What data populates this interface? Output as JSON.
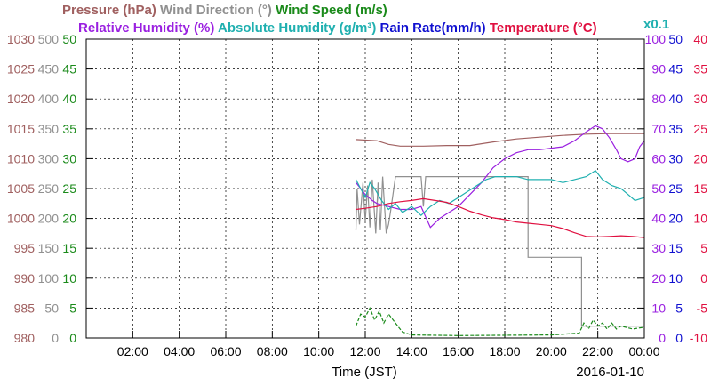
{
  "chart_data": {
    "type": "line",
    "date_label": "2016-01-10",
    "xlabel": "Time (JST)",
    "x_ticks": [
      "02:00",
      "04:00",
      "06:00",
      "08:00",
      "10:00",
      "12:00",
      "14:00",
      "16:00",
      "18:00",
      "20:00",
      "22:00",
      "00:00"
    ],
    "x_range_hours": [
      0,
      24
    ],
    "colors": {
      "pressure": "#a06060",
      "wind_direction": "#909090",
      "wind_speed": "#1a8a1a",
      "humidity": "#9a20e0",
      "abs_humidity": "#20b0b0",
      "rain": "#1010d0",
      "temperature": "#e01040",
      "grid": "#000000"
    },
    "legend": {
      "row1": [
        {
          "key": "pressure",
          "label": "Pressure (hPa)"
        },
        {
          "key": "wind_direction",
          "label": "Wind Direction (°)"
        },
        {
          "key": "wind_speed",
          "label": "Wind Speed (m/s)"
        }
      ],
      "row2": [
        {
          "key": "humidity",
          "label": "Relative Humidity (%)"
        },
        {
          "key": "abs_humidity",
          "label": "Absolute Humidity (g/m³)"
        },
        {
          "key": "rain",
          "label": "Rain Rate(mm/h)"
        },
        {
          "key": "temperature",
          "label": "Temperature (°C)"
        }
      ],
      "x01": "x0.1"
    },
    "left_axes": [
      {
        "key": "pressure",
        "ticks": [
          "980",
          "985",
          "990",
          "995",
          "1000",
          "1005",
          "1010",
          "1015",
          "1020",
          "1025",
          "1030"
        ],
        "ylim": [
          980,
          1030
        ]
      },
      {
        "key": "wind_direction",
        "ticks": [
          "0",
          "50",
          "100",
          "150",
          "200",
          "250",
          "300",
          "350",
          "400",
          "450",
          "500"
        ],
        "ylim": [
          0,
          500
        ]
      },
      {
        "key": "wind_speed",
        "ticks": [
          "0",
          "5",
          "10",
          "15",
          "20",
          "25",
          "30",
          "35",
          "40",
          "45",
          "50"
        ],
        "ylim": [
          0,
          50
        ]
      }
    ],
    "right_axes": [
      {
        "key": "humidity",
        "ticks": [
          "0",
          "10",
          "20",
          "30",
          "40",
          "50",
          "60",
          "70",
          "80",
          "90",
          "100"
        ],
        "ylim": [
          0,
          100
        ]
      },
      {
        "key": "rain",
        "ticks": [
          "0",
          "5",
          "10",
          "15",
          "20",
          "25",
          "30",
          "35",
          "40",
          "45",
          "50"
        ],
        "ylim": [
          0,
          50
        ]
      },
      {
        "key": "temperature",
        "ticks": [
          "-10",
          "-5",
          "0",
          "5",
          "10",
          "15",
          "20",
          "25",
          "30",
          "35",
          "40"
        ],
        "ylim": [
          -10,
          40
        ]
      }
    ],
    "series": [
      {
        "key": "pressure",
        "name": "Pressure (hPa)",
        "axis": "pressure",
        "points": [
          [
            11.6,
            1013.2
          ],
          [
            12.5,
            1013.0
          ],
          [
            13.0,
            1012.4
          ],
          [
            13.5,
            1012.1
          ],
          [
            14.5,
            1012.1
          ],
          [
            15.5,
            1012.2
          ],
          [
            16.5,
            1012.2
          ],
          [
            17.5,
            1012.8
          ],
          [
            18.5,
            1013.3
          ],
          [
            19.5,
            1013.6
          ],
          [
            20.5,
            1013.9
          ],
          [
            21.5,
            1014.1
          ],
          [
            22.5,
            1014.2
          ],
          [
            23.5,
            1014.2
          ],
          [
            24.0,
            1014.2
          ]
        ]
      },
      {
        "key": "wind_direction",
        "name": "Wind Direction (°)",
        "axis": "wind_direction",
        "points": [
          [
            11.6,
            180
          ],
          [
            11.65,
            250
          ],
          [
            11.75,
            190
          ],
          [
            11.9,
            260
          ],
          [
            12.0,
            195
          ],
          [
            12.1,
            255
          ],
          [
            12.2,
            185
          ],
          [
            12.3,
            265
          ],
          [
            12.45,
            175
          ],
          [
            12.55,
            260
          ],
          [
            12.65,
            180
          ],
          [
            12.75,
            270
          ],
          [
            12.9,
            175
          ],
          [
            13.0,
            190
          ],
          [
            13.1,
            215
          ],
          [
            13.3,
            270
          ],
          [
            14.4,
            270
          ],
          [
            14.5,
            220
          ],
          [
            14.6,
            270
          ],
          [
            19.0,
            270
          ],
          [
            19.0,
            135
          ],
          [
            21.3,
            135
          ],
          [
            21.3,
            20
          ],
          [
            24.0,
            20
          ]
        ]
      },
      {
        "key": "wind_speed",
        "name": "Wind Speed (m/s)",
        "axis": "wind_speed",
        "points": [
          [
            11.6,
            2
          ],
          [
            11.8,
            4
          ],
          [
            12.0,
            3.5
          ],
          [
            12.2,
            5
          ],
          [
            12.4,
            3
          ],
          [
            12.6,
            4.5
          ],
          [
            12.8,
            2.5
          ],
          [
            13.0,
            4
          ],
          [
            13.2,
            3
          ],
          [
            13.4,
            2
          ],
          [
            13.6,
            1
          ],
          [
            14.0,
            0.5
          ],
          [
            16.0,
            0.4
          ],
          [
            20.0,
            0.5
          ],
          [
            21.2,
            0.8
          ],
          [
            21.4,
            2.5
          ],
          [
            21.6,
            1.5
          ],
          [
            21.8,
            3
          ],
          [
            22.0,
            2
          ],
          [
            22.2,
            2.5
          ],
          [
            22.4,
            1.5
          ],
          [
            22.6,
            2.5
          ],
          [
            22.8,
            1.5
          ],
          [
            23.0,
            2
          ],
          [
            23.5,
            1.5
          ],
          [
            24.0,
            1.8
          ]
        ]
      },
      {
        "key": "humidity",
        "name": "Relative Humidity (%)",
        "axis": "humidity",
        "points": [
          [
            11.6,
            52
          ],
          [
            11.8,
            50
          ],
          [
            12.0,
            48
          ],
          [
            12.3,
            46
          ],
          [
            12.5,
            45
          ],
          [
            13.0,
            44
          ],
          [
            13.5,
            43
          ],
          [
            14.0,
            43
          ],
          [
            14.4,
            44
          ],
          [
            14.8,
            37
          ],
          [
            15.2,
            40
          ],
          [
            15.6,
            42
          ],
          [
            16.0,
            44
          ],
          [
            16.5,
            48
          ],
          [
            17.0,
            52
          ],
          [
            17.5,
            57
          ],
          [
            18.0,
            60
          ],
          [
            18.5,
            62
          ],
          [
            19.0,
            63
          ],
          [
            19.5,
            63
          ],
          [
            20.0,
            63.5
          ],
          [
            20.5,
            64
          ],
          [
            21.0,
            66
          ],
          [
            21.5,
            69
          ],
          [
            21.9,
            71
          ],
          [
            22.2,
            70
          ],
          [
            22.5,
            67
          ],
          [
            22.8,
            63
          ],
          [
            23.0,
            60
          ],
          [
            23.3,
            59
          ],
          [
            23.6,
            60
          ],
          [
            23.8,
            64
          ],
          [
            24.0,
            66
          ]
        ]
      },
      {
        "key": "abs_humidity",
        "name": "Absolute Humidity (g/m³)",
        "axis": "humidity",
        "points": [
          [
            11.6,
            53
          ],
          [
            11.8,
            50
          ],
          [
            12.0,
            47
          ],
          [
            12.2,
            52
          ],
          [
            12.4,
            50
          ],
          [
            12.7,
            46
          ],
          [
            13.0,
            43
          ],
          [
            13.3,
            45
          ],
          [
            13.6,
            42
          ],
          [
            14.0,
            44
          ],
          [
            14.4,
            41
          ],
          [
            14.8,
            44
          ],
          [
            15.2,
            46
          ],
          [
            15.6,
            45
          ],
          [
            16.0,
            47
          ],
          [
            16.4,
            49
          ],
          [
            16.8,
            51
          ],
          [
            17.2,
            53
          ],
          [
            17.6,
            54
          ],
          [
            18.0,
            54
          ],
          [
            18.5,
            54
          ],
          [
            19.0,
            53
          ],
          [
            19.5,
            53
          ],
          [
            20.0,
            53
          ],
          [
            20.5,
            52
          ],
          [
            21.0,
            53
          ],
          [
            21.5,
            54
          ],
          [
            21.9,
            56
          ],
          [
            22.2,
            53
          ],
          [
            22.6,
            51
          ],
          [
            23.0,
            50
          ],
          [
            23.3,
            48
          ],
          [
            23.6,
            46
          ],
          [
            24.0,
            47
          ]
        ]
      },
      {
        "key": "temperature",
        "name": "Temperature (°C)",
        "axis": "temperature",
        "points": [
          [
            11.6,
            11.5
          ],
          [
            12.0,
            11.7
          ],
          [
            12.5,
            12.0
          ],
          [
            13.0,
            12.5
          ],
          [
            13.5,
            12.8
          ],
          [
            14.0,
            13.0
          ],
          [
            14.5,
            13.3
          ],
          [
            15.0,
            13.0
          ],
          [
            15.5,
            12.7
          ],
          [
            16.0,
            12.0
          ],
          [
            16.5,
            11.2
          ],
          [
            17.0,
            10.6
          ],
          [
            17.5,
            10.1
          ],
          [
            18.0,
            9.8
          ],
          [
            18.5,
            9.4
          ],
          [
            19.0,
            9.2
          ],
          [
            19.5,
            9.0
          ],
          [
            20.0,
            8.8
          ],
          [
            20.5,
            8.3
          ],
          [
            21.0,
            7.6
          ],
          [
            21.5,
            7.0
          ],
          [
            22.0,
            6.9
          ],
          [
            22.5,
            7.0
          ],
          [
            23.0,
            7.1
          ],
          [
            23.5,
            7.0
          ],
          [
            24.0,
            6.8
          ]
        ]
      }
    ]
  }
}
